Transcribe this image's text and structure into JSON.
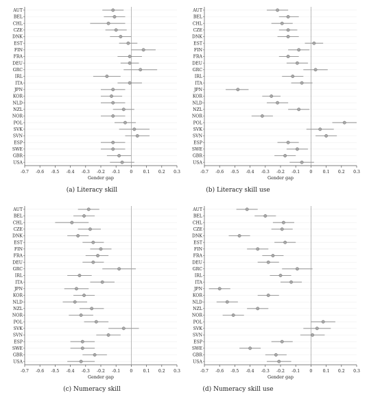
{
  "chart_data": [
    {
      "type": "scatter",
      "caption": "(a) Literacy skill",
      "xlabel": "Gender gap",
      "xlim": [
        -0.7,
        0.3
      ],
      "xticks": [
        "-0.7",
        "-0.6",
        "-0.5",
        "-0.4",
        "-0.3",
        "-0.2",
        "-0.1",
        "0",
        "0.1",
        "0.2",
        "0.3"
      ],
      "categories": [
        "AUT",
        "BEL",
        "CHL",
        "CZE",
        "DNK",
        "EST",
        "FIN",
        "FRA",
        "DEU",
        "GRC",
        "IRL",
        "ITA",
        "JPN",
        "KOR",
        "NLD",
        "NZL",
        "NOR",
        "POL",
        "SVK",
        "SVN",
        "ESP",
        "SWE",
        "GBR",
        "USA"
      ],
      "estimate": [
        -0.12,
        -0.11,
        -0.15,
        -0.1,
        -0.07,
        -0.02,
        0.08,
        -0.01,
        -0.01,
        0.06,
        -0.16,
        -0.01,
        -0.12,
        -0.13,
        -0.12,
        -0.05,
        -0.12,
        -0.04,
        0.02,
        0.04,
        -0.12,
        -0.12,
        -0.08,
        -0.06
      ],
      "ci_low": [
        -0.19,
        -0.18,
        -0.27,
        -0.17,
        -0.14,
        -0.08,
        0.0,
        -0.09,
        -0.07,
        -0.05,
        -0.25,
        -0.09,
        -0.2,
        -0.2,
        -0.2,
        -0.12,
        -0.2,
        -0.11,
        -0.08,
        -0.04,
        -0.2,
        -0.2,
        -0.16,
        -0.14
      ],
      "ci_high": [
        -0.05,
        -0.04,
        -0.04,
        -0.03,
        0.0,
        0.04,
        0.16,
        0.07,
        0.05,
        0.17,
        -0.07,
        0.07,
        -0.04,
        -0.06,
        -0.04,
        0.02,
        -0.04,
        0.03,
        0.12,
        0.12,
        -0.04,
        -0.04,
        0.0,
        0.02
      ]
    },
    {
      "type": "scatter",
      "caption": "(b) Literacy skill use",
      "xlabel": "Gender gap",
      "xlim": [
        -0.7,
        0.3
      ],
      "xticks": [
        "-0.7",
        "-0.6",
        "-0.5",
        "-0.4",
        "-0.3",
        "-0.2",
        "-0.1",
        "0",
        "0.1",
        "0.2",
        "0.3"
      ],
      "categories": [
        "AUT",
        "BEL",
        "CHL",
        "CZE",
        "DNK",
        "EST",
        "FIN",
        "FRA",
        "DEU",
        "GRC",
        "IRL",
        "ITA",
        "JPN",
        "KOR",
        "NLD",
        "NZL",
        "NOR",
        "POL",
        "SVK",
        "SVN",
        "ESP",
        "SWE",
        "GBR",
        "USA"
      ],
      "estimate": [
        -0.22,
        -0.15,
        -0.19,
        -0.15,
        -0.15,
        0.02,
        -0.08,
        -0.15,
        -0.09,
        0.03,
        -0.12,
        -0.06,
        -0.48,
        -0.26,
        -0.22,
        -0.08,
        -0.32,
        0.22,
        0.06,
        0.1,
        -0.15,
        -0.09,
        -0.17,
        -0.06
      ],
      "ci_low": [
        -0.29,
        -0.21,
        -0.26,
        -0.21,
        -0.22,
        -0.04,
        -0.15,
        -0.21,
        -0.16,
        -0.05,
        -0.19,
        -0.13,
        -0.56,
        -0.32,
        -0.29,
        -0.15,
        -0.39,
        0.14,
        -0.03,
        0.03,
        -0.22,
        -0.16,
        -0.24,
        -0.14
      ],
      "ci_high": [
        -0.15,
        -0.08,
        -0.12,
        -0.09,
        -0.08,
        0.08,
        -0.01,
        -0.08,
        -0.02,
        0.11,
        -0.05,
        0.01,
        -0.41,
        -0.2,
        -0.15,
        -0.01,
        -0.25,
        0.3,
        0.15,
        0.17,
        -0.08,
        -0.02,
        -0.1,
        0.02
      ]
    },
    {
      "type": "scatter",
      "caption": "(c) Numeracy skill",
      "xlabel": "Gender gap",
      "xlim": [
        -0.7,
        0.3
      ],
      "xticks": [
        "-0.7",
        "-0.6",
        "-0.5",
        "-0.4",
        "-0.3",
        "-0.2",
        "-0.1",
        "0",
        "0.1",
        "0.2",
        "0.3"
      ],
      "categories": [
        "AUT",
        "BEL",
        "CHL",
        "CZE",
        "DNK",
        "EST",
        "FIN",
        "FRA",
        "DEU",
        "GRC",
        "IRL",
        "ITA",
        "JPN",
        "KOR",
        "NLD",
        "NZL",
        "NOR",
        "POL",
        "SVK",
        "SVN",
        "ESP",
        "SWE",
        "GBR",
        "USA"
      ],
      "estimate": [
        -0.28,
        -0.31,
        -0.39,
        -0.27,
        -0.35,
        -0.25,
        -0.2,
        -0.22,
        -0.25,
        -0.08,
        -0.34,
        -0.19,
        -0.36,
        -0.31,
        -0.37,
        -0.26,
        -0.33,
        -0.23,
        -0.05,
        -0.15,
        -0.32,
        -0.32,
        -0.24,
        -0.33
      ],
      "ci_low": [
        -0.35,
        -0.38,
        -0.5,
        -0.35,
        -0.42,
        -0.32,
        -0.27,
        -0.3,
        -0.32,
        -0.19,
        -0.42,
        -0.27,
        -0.44,
        -0.38,
        -0.45,
        -0.34,
        -0.41,
        -0.31,
        -0.15,
        -0.23,
        -0.4,
        -0.4,
        -0.32,
        -0.42
      ],
      "ci_high": [
        -0.21,
        -0.24,
        -0.28,
        -0.2,
        -0.28,
        -0.18,
        -0.13,
        -0.15,
        -0.18,
        0.03,
        -0.26,
        -0.11,
        -0.28,
        -0.24,
        -0.29,
        -0.18,
        -0.25,
        -0.15,
        0.05,
        -0.07,
        -0.24,
        -0.24,
        -0.16,
        -0.24
      ]
    },
    {
      "type": "scatter",
      "caption": "(d) Numeracy skill use",
      "xlabel": "Gender gap",
      "xlim": [
        -0.7,
        0.3
      ],
      "xticks": [
        "-0.7",
        "-0.6",
        "-0.5",
        "-0.4",
        "-0.3",
        "-0.2",
        "-0.1",
        "0",
        "0.1",
        "0.2",
        "0.3"
      ],
      "categories": [
        "AUT",
        "BEL",
        "CHL",
        "CZE",
        "DNK",
        "EST",
        "FIN",
        "FRA",
        "DEU",
        "GRC",
        "IRL",
        "ITA",
        "JPN",
        "KOR",
        "NLD",
        "NZL",
        "NOR",
        "POL",
        "SVK",
        "SVN",
        "ESP",
        "SWE",
        "GBR",
        "USA"
      ],
      "estimate": [
        -0.42,
        -0.3,
        -0.18,
        -0.19,
        -0.47,
        -0.17,
        -0.35,
        -0.25,
        -0.28,
        -0.09,
        -0.2,
        -0.13,
        -0.6,
        -0.28,
        -0.55,
        -0.35,
        -0.51,
        0.08,
        0.04,
        0.01,
        -0.19,
        -0.4,
        -0.23,
        -0.21
      ],
      "ci_low": [
        -0.49,
        -0.37,
        -0.25,
        -0.26,
        -0.54,
        -0.24,
        -0.42,
        -0.32,
        -0.35,
        -0.19,
        -0.27,
        -0.2,
        -0.67,
        -0.35,
        -0.62,
        -0.42,
        -0.58,
        0.0,
        -0.05,
        -0.07,
        -0.26,
        -0.47,
        -0.3,
        -0.29
      ],
      "ci_high": [
        -0.35,
        -0.23,
        -0.11,
        -0.12,
        -0.4,
        -0.1,
        -0.28,
        -0.18,
        -0.21,
        0.01,
        -0.13,
        -0.06,
        -0.53,
        -0.21,
        -0.48,
        -0.28,
        -0.44,
        0.16,
        0.13,
        0.09,
        -0.12,
        -0.33,
        -0.16,
        -0.13
      ]
    }
  ],
  "colors": {
    "marker_fill": "#a8a8a8",
    "marker_stroke": "#6f6f6f",
    "ci_line": "#9a9a9a",
    "grid": "#eeeeee",
    "axis": "#555555",
    "zero_line": "#9a9a9a",
    "text": "#222222"
  }
}
